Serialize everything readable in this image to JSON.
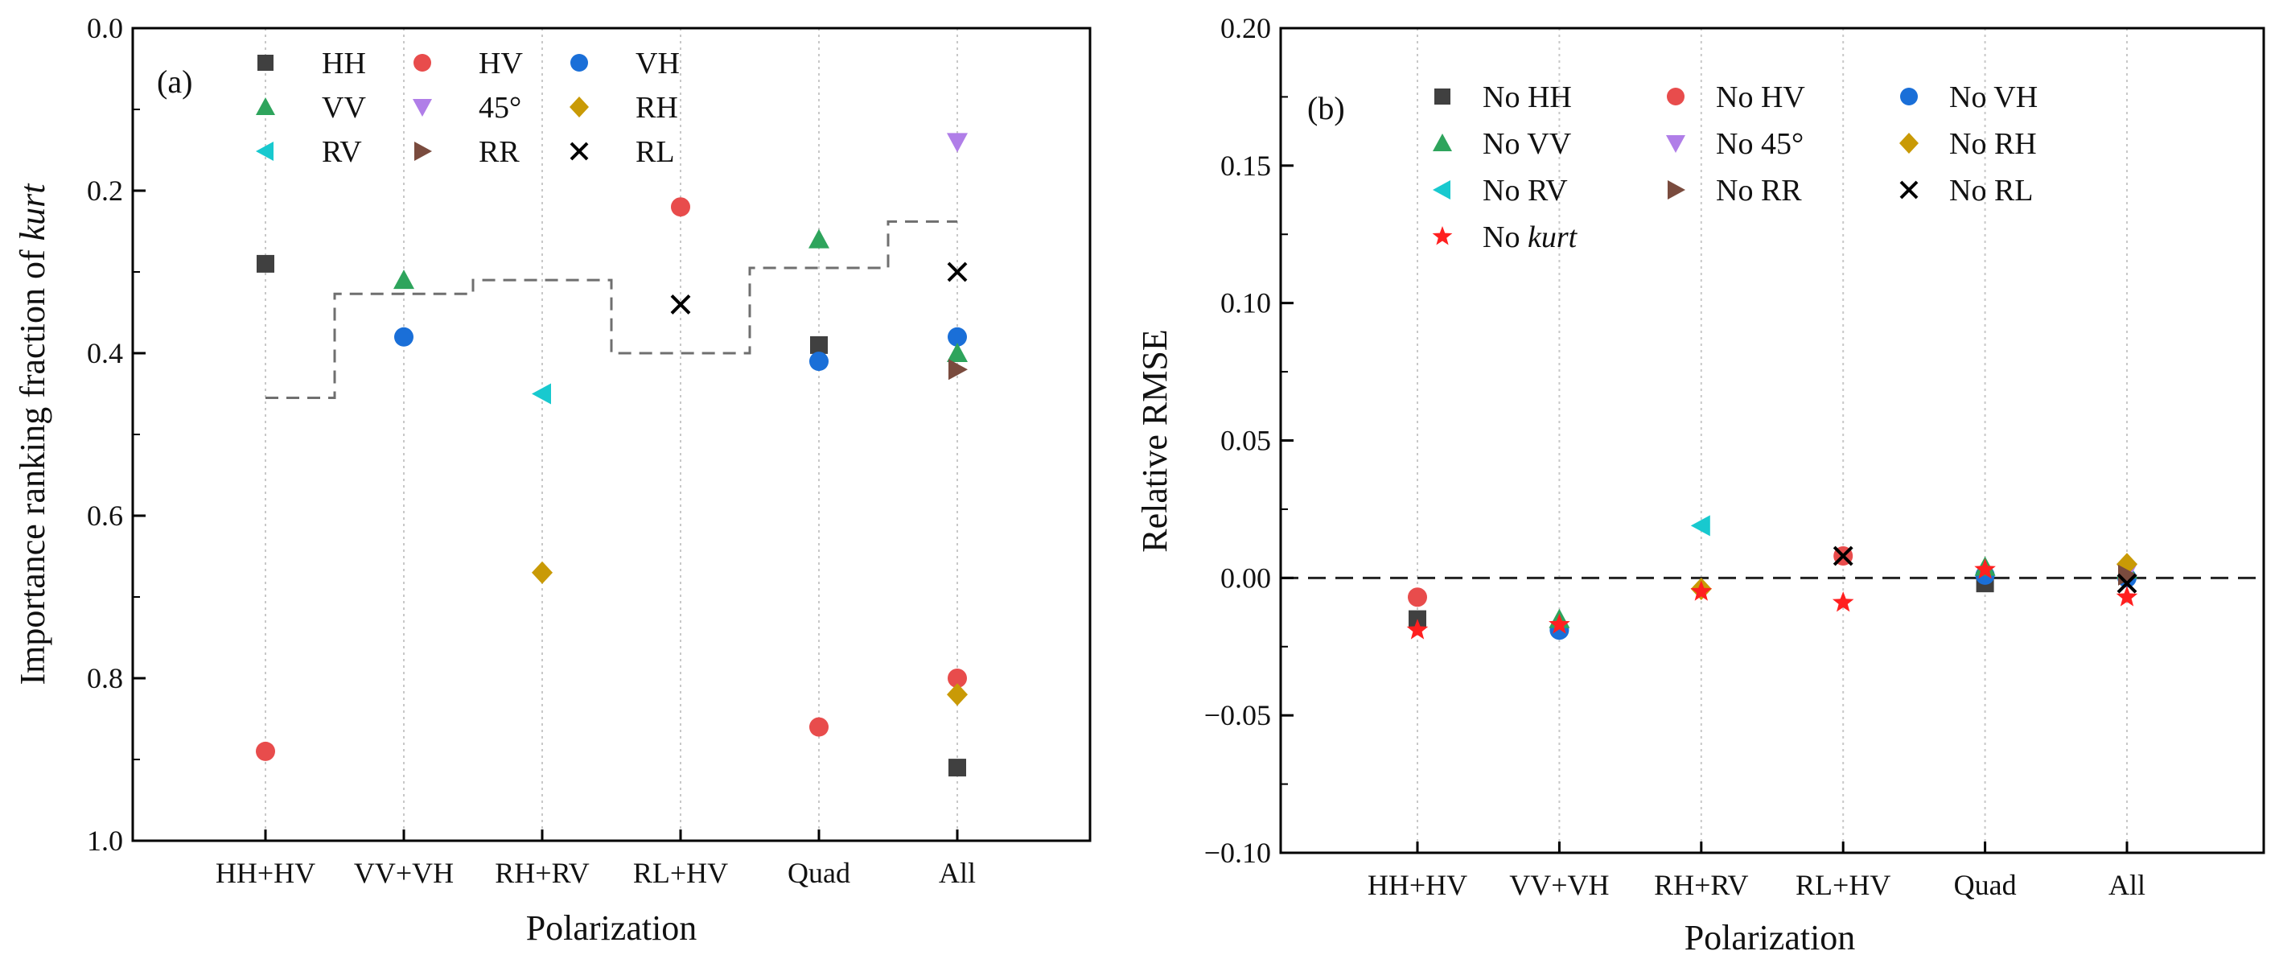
{
  "figure": {
    "panel_a_label": "(a)",
    "panel_b_label": "(b)"
  },
  "colors": {
    "HH": "#404040",
    "HV": "#e84c4c",
    "VH": "#1a6fd8",
    "VV": "#2ea45c",
    "45": "#b07ee8",
    "RH": "#c99a06",
    "RV": "#18c9cf",
    "RR": "#7a4b3e",
    "RL": "#000000",
    "kurt": "#ff2020",
    "axis": "#000000",
    "grid": "#c8c8c8",
    "dash": "#6f6f6f"
  },
  "chart_data": [
    {
      "id": "panel-a",
      "type": "scatter",
      "panel": "(a)",
      "xlabel": "Polarization",
      "ylabel_prefix": "Importance ranking fraction of ",
      "ylabel_italic": "kurt",
      "categories": [
        "HH+HV",
        "VV+VH",
        "RH+RV",
        "RL+HV",
        "Quad",
        "All"
      ],
      "ylim": [
        1.0,
        0.0
      ],
      "yinverted": true,
      "yticks": [
        0.0,
        0.2,
        0.4,
        0.6,
        0.8,
        1.0
      ],
      "ytick_labels": [
        "0.0",
        "0.2",
        "0.4",
        "0.6",
        "0.8",
        "1.0"
      ],
      "grid_x": true,
      "legend_position": "top-left",
      "series": [
        {
          "key": "HH",
          "name": "HH",
          "marker": "square",
          "points": [
            {
              "cat": "HH+HV",
              "y": 0.29
            },
            {
              "cat": "Quad",
              "y": 0.39
            },
            {
              "cat": "All",
              "y": 0.91
            }
          ]
        },
        {
          "key": "HV",
          "name": "HV",
          "marker": "circle",
          "points": [
            {
              "cat": "HH+HV",
              "y": 0.89
            },
            {
              "cat": "RL+HV",
              "y": 0.22
            },
            {
              "cat": "Quad",
              "y": 0.86
            },
            {
              "cat": "All",
              "y": 0.8
            }
          ]
        },
        {
          "key": "VH",
          "name": "VH",
          "marker": "circle",
          "points": [
            {
              "cat": "VV+VH",
              "y": 0.38
            },
            {
              "cat": "Quad",
              "y": 0.41
            },
            {
              "cat": "All",
              "y": 0.38
            }
          ]
        },
        {
          "key": "VV",
          "name": "VV",
          "marker": "triangle-up",
          "points": [
            {
              "cat": "VV+VH",
              "y": 0.31
            },
            {
              "cat": "Quad",
              "y": 0.26
            },
            {
              "cat": "All",
              "y": 0.4
            }
          ]
        },
        {
          "key": "45",
          "name": "45°",
          "marker": "triangle-down",
          "points": [
            {
              "cat": "All",
              "y": 0.14
            }
          ]
        },
        {
          "key": "RH",
          "name": "RH",
          "marker": "diamond",
          "points": [
            {
              "cat": "RH+RV",
              "y": 0.67
            },
            {
              "cat": "All",
              "y": 0.82
            }
          ]
        },
        {
          "key": "RV",
          "name": "RV",
          "marker": "triangle-left",
          "points": [
            {
              "cat": "RH+RV",
              "y": 0.45
            }
          ]
        },
        {
          "key": "RR",
          "name": "RR",
          "marker": "triangle-right",
          "points": [
            {
              "cat": "All",
              "y": 0.42
            }
          ]
        },
        {
          "key": "RL",
          "name": "RL",
          "marker": "cross",
          "points": [
            {
              "cat": "RL+HV",
              "y": 0.34
            },
            {
              "cat": "All",
              "y": 0.3
            }
          ]
        }
      ],
      "threshold_step": {
        "style": "dashed",
        "levels": [
          0.455,
          0.327,
          0.31,
          0.4,
          0.295,
          0.238
        ]
      }
    },
    {
      "id": "panel-b",
      "type": "scatter",
      "panel": "(b)",
      "xlabel": "Polarization",
      "ylabel": "Relative RMSE",
      "categories": [
        "HH+HV",
        "VV+VH",
        "RH+RV",
        "RL+HV",
        "Quad",
        "All"
      ],
      "ylim": [
        -0.1,
        0.2
      ],
      "yticks": [
        -0.1,
        -0.05,
        0.0,
        0.05,
        0.1,
        0.15,
        0.2
      ],
      "ytick_labels": [
        "−0.10",
        "−0.05",
        "0.00",
        "0.05",
        "0.10",
        "0.15",
        "0.20"
      ],
      "grid_x": true,
      "zero_line": {
        "y": 0.0,
        "style": "dashed"
      },
      "legend_position": "top-left",
      "series": [
        {
          "key": "HH",
          "name": "No HH",
          "marker": "square",
          "points": [
            {
              "cat": "HH+HV",
              "y": -0.015
            },
            {
              "cat": "Quad",
              "y": -0.002
            }
          ]
        },
        {
          "key": "HV",
          "name": "No HV",
          "marker": "circle",
          "points": [
            {
              "cat": "HH+HV",
              "y": -0.007
            },
            {
              "cat": "RL+HV",
              "y": 0.008
            }
          ]
        },
        {
          "key": "VH",
          "name": "No VH",
          "marker": "circle",
          "points": [
            {
              "cat": "VV+VH",
              "y": -0.019
            },
            {
              "cat": "Quad",
              "y": 0.001
            },
            {
              "cat": "All",
              "y": 0.0
            }
          ]
        },
        {
          "key": "VV",
          "name": "No VV",
          "marker": "triangle-up",
          "points": [
            {
              "cat": "VV+VH",
              "y": -0.015
            },
            {
              "cat": "Quad",
              "y": 0.004
            },
            {
              "cat": "All",
              "y": 0.003
            }
          ]
        },
        {
          "key": "45",
          "name": "No 45°",
          "marker": "triangle-down",
          "points": [
            {
              "cat": "All",
              "y": 0.002
            }
          ]
        },
        {
          "key": "RH",
          "name": "No RH",
          "marker": "diamond",
          "points": [
            {
              "cat": "RH+RV",
              "y": -0.004
            },
            {
              "cat": "All",
              "y": 0.005
            }
          ]
        },
        {
          "key": "RV",
          "name": "No RV",
          "marker": "triangle-left",
          "points": [
            {
              "cat": "RH+RV",
              "y": 0.019
            }
          ]
        },
        {
          "key": "RR",
          "name": "No RR",
          "marker": "triangle-right",
          "points": [
            {
              "cat": "All",
              "y": 0.001
            }
          ]
        },
        {
          "key": "RL",
          "name": "No RL",
          "marker": "cross",
          "points": [
            {
              "cat": "RL+HV",
              "y": 0.008
            },
            {
              "cat": "All",
              "y": -0.002
            }
          ]
        },
        {
          "key": "kurt",
          "name": "No ",
          "name_italic": "kurt",
          "marker": "star",
          "points": [
            {
              "cat": "HH+HV",
              "y": -0.019
            },
            {
              "cat": "VV+VH",
              "y": -0.017
            },
            {
              "cat": "RH+RV",
              "y": -0.005
            },
            {
              "cat": "RL+HV",
              "y": -0.009
            },
            {
              "cat": "Quad",
              "y": 0.003
            },
            {
              "cat": "All",
              "y": -0.007
            }
          ]
        }
      ]
    }
  ]
}
